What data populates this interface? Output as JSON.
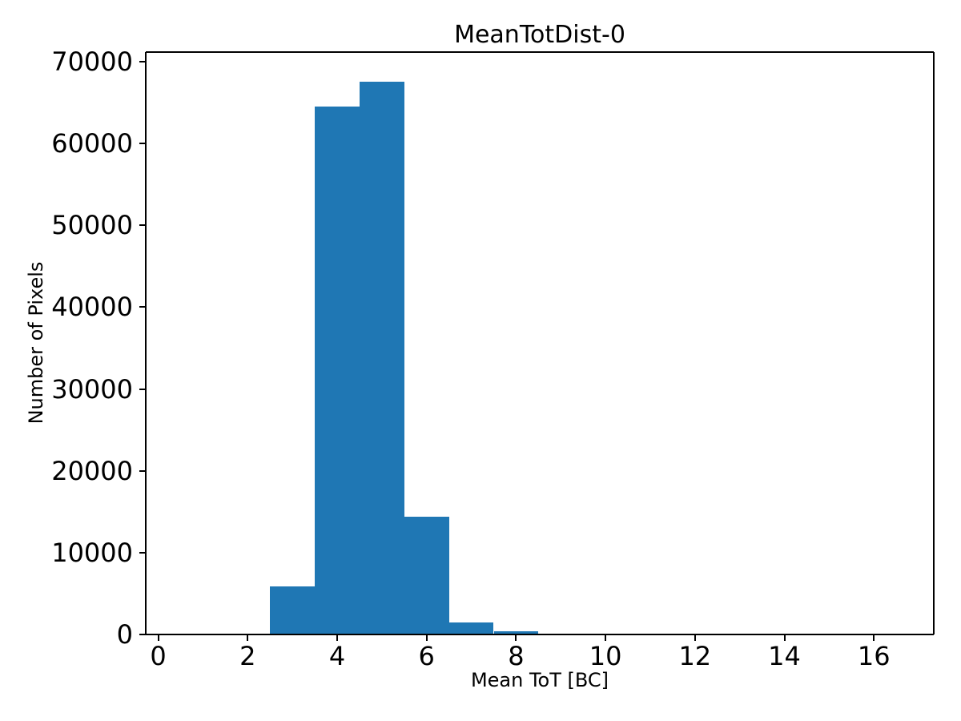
{
  "chart_data": {
    "type": "bar",
    "subtype": "histogram",
    "title": "MeanTotDist-0",
    "xlabel": "Mean ToT [BC]",
    "ylabel": "Number of Pixels",
    "bar_color": "#1f77b4",
    "text_color": "#000000",
    "background_color": "#ffffff",
    "bin_edges": [
      2.5,
      3.5,
      4.5,
      5.5,
      6.5,
      7.5,
      8.5
    ],
    "counts": [
      5900,
      64500,
      67500,
      14400,
      1500,
      400
    ],
    "xticks": [
      0,
      2,
      4,
      6,
      8,
      10,
      12,
      14,
      16
    ],
    "yticks": [
      0,
      10000,
      20000,
      30000,
      40000,
      50000,
      60000,
      70000
    ],
    "xlim": [
      -0.28,
      17.34
    ],
    "ylim": [
      0,
      71150
    ],
    "grid": false,
    "legend": null
  }
}
